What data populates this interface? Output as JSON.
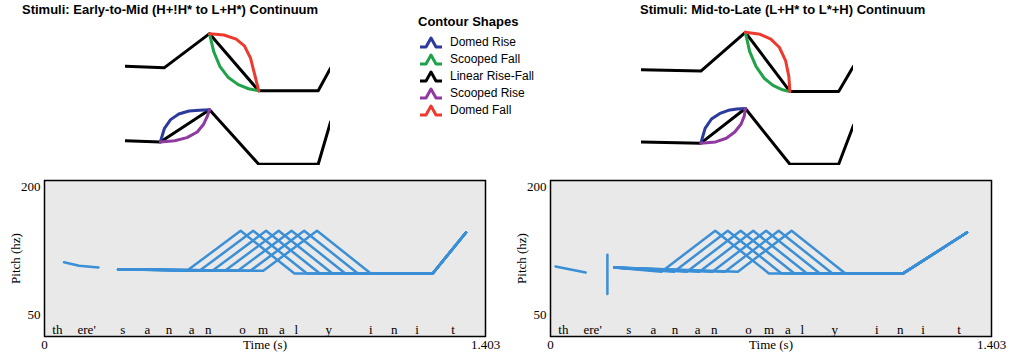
{
  "contour_legend": {
    "title": "Contour Shapes",
    "entries": [
      {
        "name": "Domed Rise",
        "color": "#2b3a9b"
      },
      {
        "name": "Scooped Fall",
        "color": "#1fa24a"
      },
      {
        "name": "Linear Rise-Fall",
        "color": "#000000"
      },
      {
        "name": "Scooped Rise",
        "color": "#8e3a9e"
      },
      {
        "name": "Domed Fall",
        "color": "#ec3a2e"
      }
    ]
  },
  "chart_data": [
    {
      "type": "line",
      "title": "Stimuli: Early-to-Mid (H+!H* to L+H*) Continuum",
      "contours": [
        {
          "type": "line",
          "tick_labels": false,
          "xlim": [
            0,
            100
          ],
          "ylim": [
            0,
            100
          ],
          "series": [
            {
              "name": "Linear Rise-Fall",
              "color": "#000000",
              "x": [
                0,
                19,
                41,
                65,
                94,
                100
              ],
              "values": [
                40,
                38,
                88,
                4,
                4,
                37
              ]
            },
            {
              "name": "Scooped Fall",
              "color": "#1fa24a",
              "x": [
                41,
                43,
                46,
                50,
                55,
                60,
                65
              ],
              "values": [
                88,
                62,
                40,
                24,
                13,
                7,
                4
              ]
            },
            {
              "name": "Domed Fall",
              "color": "#ec3a2e",
              "x": [
                41,
                48,
                54,
                58,
                61,
                63,
                65
              ],
              "values": [
                88,
                86,
                80,
                70,
                52,
                28,
                4
              ]
            }
          ]
        },
        {
          "type": "line",
          "tick_labels": false,
          "xlim": [
            0,
            100
          ],
          "ylim": [
            0,
            100
          ],
          "series": [
            {
              "name": "Linear Rise-Fall",
              "color": "#000000",
              "x": [
                0,
                17,
                41,
                65,
                94,
                100
              ],
              "values": [
                40,
                38,
                90,
                2,
                2,
                70
              ]
            },
            {
              "name": "Domed Rise",
              "color": "#2b3a9b",
              "x": [
                17,
                19,
                22,
                26,
                31,
                36,
                41
              ],
              "values": [
                38,
                60,
                74,
                83,
                88,
                89,
                90
              ]
            },
            {
              "name": "Scooped Rise",
              "color": "#8e3a9e",
              "x": [
                17,
                24,
                30,
                35,
                38,
                40,
                41
              ],
              "values": [
                38,
                40,
                45,
                54,
                66,
                80,
                90
              ]
            }
          ]
        }
      ],
      "pitch": {
        "type": "line",
        "xlabel": "Time (s)",
        "ylabel": "Pitch (hz)",
        "xlim": [
          0,
          1.403
        ],
        "xticks": [
          0,
          1.403
        ],
        "ylim": [
          25,
          208
        ],
        "yticks": [
          50,
          200
        ],
        "color": "#3a8fd6",
        "segments": {
          "labels": [
            "th",
            "ere'",
            "s",
            "a",
            "n",
            "a",
            "n",
            "o",
            "m",
            "a",
            "l",
            "y",
            "i",
            "n",
            "i",
            "t"
          ],
          "x": [
            0.041,
            0.134,
            0.249,
            0.327,
            0.396,
            0.468,
            0.521,
            0.63,
            0.695,
            0.755,
            0.801,
            0.904,
            1.038,
            1.113,
            1.185,
            1.3
          ]
        },
        "series": [
          {
            "x": [
              0.062,
              0.11,
              0.172
            ],
            "values": [
              112,
              108,
              106
            ]
          },
          {
            "x": [
              0.234,
              0.453,
              0.624,
              0.795,
              1.235,
              1.341
            ],
            "values": [
              104,
              102,
              149,
              99,
              99,
              147
            ]
          },
          {
            "x": [
              0.234,
              0.493,
              0.664,
              0.835,
              1.235,
              1.341
            ],
            "values": [
              104,
              102,
              149,
              99,
              99,
              147
            ]
          },
          {
            "x": [
              0.234,
              0.534,
              0.705,
              0.876,
              1.235,
              1.341
            ],
            "values": [
              104,
              102,
              149,
              99,
              99,
              147
            ]
          },
          {
            "x": [
              0.234,
              0.574,
              0.745,
              0.916,
              1.235,
              1.341
            ],
            "values": [
              104,
              102,
              149,
              99,
              99,
              147
            ]
          },
          {
            "x": [
              0.234,
              0.615,
              0.786,
              0.957,
              1.235,
              1.341
            ],
            "values": [
              104,
              102,
              149,
              99,
              99,
              147
            ]
          },
          {
            "x": [
              0.234,
              0.655,
              0.826,
              0.997,
              1.235,
              1.341
            ],
            "values": [
              104,
              102,
              149,
              99,
              99,
              147
            ]
          },
          {
            "x": [
              0.234,
              0.696,
              0.867,
              1.038,
              1.235,
              1.341
            ],
            "values": [
              104,
              102,
              149,
              99,
              99,
              147
            ]
          }
        ]
      }
    },
    {
      "type": "line",
      "title": "Stimuli: Mid-to-Late (L+H* to L*+H) Continuum",
      "contours": [
        {
          "type": "line",
          "tick_labels": false,
          "xlim": [
            0,
            100
          ],
          "ylim": [
            0,
            100
          ],
          "series": [
            {
              "name": "Linear Rise-Fall",
              "color": "#000000",
              "x": [
                0,
                28,
                49,
                70,
                93,
                100
              ],
              "values": [
                35,
                33,
                90,
                3,
                3,
                40
              ]
            },
            {
              "name": "Scooped Fall",
              "color": "#1fa24a",
              "x": [
                49,
                51,
                54,
                58,
                62,
                66,
                70
              ],
              "values": [
                90,
                62,
                40,
                22,
                12,
                6,
                3
              ]
            },
            {
              "name": "Domed Fall",
              "color": "#ec3a2e",
              "x": [
                49,
                56,
                61,
                65,
                68,
                69.5,
                70
              ],
              "values": [
                90,
                87,
                80,
                68,
                48,
                25,
                3
              ]
            }
          ]
        },
        {
          "type": "line",
          "tick_labels": false,
          "xlim": [
            0,
            100
          ],
          "ylim": [
            0,
            100
          ],
          "series": [
            {
              "name": "Linear Rise-Fall",
              "color": "#000000",
              "x": [
                0,
                28,
                49,
                70,
                93,
                100
              ],
              "values": [
                38,
                36,
                92,
                2,
                2,
                65
              ]
            },
            {
              "name": "Domed Rise",
              "color": "#2b3a9b",
              "x": [
                28,
                30,
                33,
                37,
                41,
                45,
                49
              ],
              "values": [
                36,
                60,
                75,
                84,
                89,
                91,
                92
              ]
            },
            {
              "name": "Scooped Rise",
              "color": "#8e3a9e",
              "x": [
                28,
                35,
                40,
                44,
                47,
                48.5,
                49
              ],
              "values": [
                36,
                38,
                44,
                54,
                67,
                80,
                92
              ]
            }
          ]
        }
      ],
      "pitch": {
        "type": "line",
        "xlabel": "Time (s)",
        "ylabel": "Pitch (hz)",
        "xlim": [
          0,
          1.403
        ],
        "xticks": [
          0,
          1.403
        ],
        "ylim": [
          25,
          208
        ],
        "yticks": [
          50,
          200
        ],
        "color": "#3a8fd6",
        "segments": {
          "labels": [
            "th",
            "ere'",
            "s",
            "a",
            "n",
            "a",
            "n",
            "o",
            "m",
            "a",
            "l",
            "y",
            "i",
            "n",
            "i",
            "t"
          ],
          "x": [
            0.041,
            0.134,
            0.249,
            0.327,
            0.396,
            0.468,
            0.521,
            0.63,
            0.695,
            0.755,
            0.801,
            0.904,
            1.038,
            1.113,
            1.185,
            1.3
          ]
        },
        "series": [
          {
            "x": [
              0.016,
              0.06,
              0.112
            ],
            "values": [
              107,
              104,
              100
            ]
          },
          {
            "x": [
              0.181,
              0.181
            ],
            "values": [
              75,
              121
            ]
          },
          {
            "x": [
              0.203,
              0.353,
              0.524,
              0.695,
              1.122,
              1.325
            ],
            "values": [
              106,
              101,
              149,
              99,
              99,
              147
            ]
          },
          {
            "x": [
              0.203,
              0.393,
              0.564,
              0.735,
              1.122,
              1.325
            ],
            "values": [
              106,
              101,
              149,
              99,
              99,
              147
            ]
          },
          {
            "x": [
              0.203,
              0.434,
              0.605,
              0.776,
              1.122,
              1.325
            ],
            "values": [
              106,
              101,
              149,
              99,
              99,
              147
            ]
          },
          {
            "x": [
              0.203,
              0.474,
              0.645,
              0.816,
              1.122,
              1.325
            ],
            "values": [
              106,
              101,
              149,
              99,
              99,
              147
            ]
          },
          {
            "x": [
              0.203,
              0.515,
              0.686,
              0.857,
              1.122,
              1.325
            ],
            "values": [
              106,
              101,
              149,
              99,
              99,
              147
            ]
          },
          {
            "x": [
              0.203,
              0.555,
              0.726,
              0.897,
              1.122,
              1.325
            ],
            "values": [
              106,
              101,
              149,
              99,
              99,
              147
            ]
          },
          {
            "x": [
              0.203,
              0.596,
              0.767,
              0.938,
              1.122,
              1.325
            ],
            "values": [
              106,
              101,
              149,
              99,
              99,
              147
            ]
          }
        ]
      }
    }
  ]
}
